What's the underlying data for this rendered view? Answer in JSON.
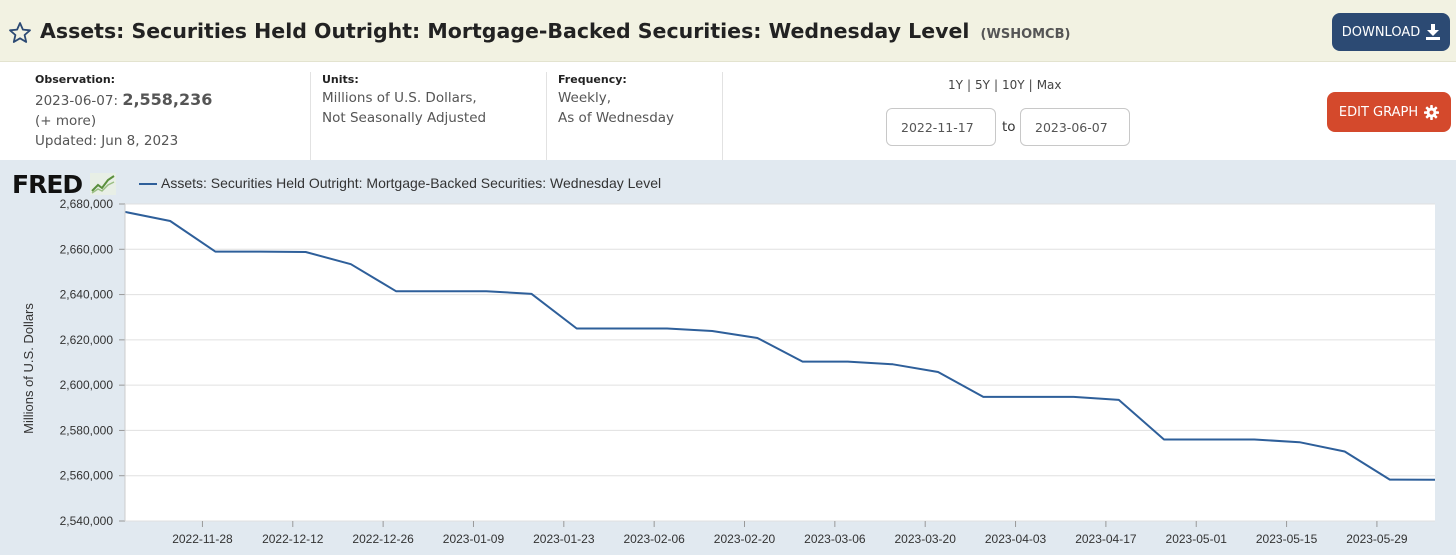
{
  "header": {
    "title": "Assets: Securities Held Outright: Mortgage-Backed Securities: Wednesday Level",
    "series_id": "(WSHOMCB)",
    "download_label": "DOWNLOAD",
    "bg_color": "#f2f2e2"
  },
  "meta": {
    "observation_label": "Observation:",
    "observation_date": "2023-06-07:",
    "observation_value": "2,558,236",
    "more_link": "(+ more)",
    "updated": "Updated: Jun 8, 2023",
    "units_label": "Units:",
    "units_line1": "Millions of U.S. Dollars,",
    "units_line2": "Not Seasonally Adjusted",
    "frequency_label": "Frequency:",
    "frequency_line1": "Weekly,",
    "frequency_line2": "As of Wednesday"
  },
  "range": {
    "options": [
      "1Y",
      "5Y",
      "10Y",
      "Max"
    ],
    "separator": "|",
    "start_date": "2022-11-17",
    "to_label": "to",
    "end_date": "2023-06-07",
    "edit_label": "EDIT GRAPH"
  },
  "icons": {
    "star": "star-icon",
    "download": "download-icon",
    "gear": "gear-icon",
    "fred_logo": "fred-logo"
  },
  "colors": {
    "download_button": "#2c4a73",
    "edit_button": "#d4492c",
    "series_line": "#2e5f9a",
    "panel_bg": "#e1e9f0"
  },
  "fred_logo_text": "FRED",
  "chart_data": {
    "type": "line",
    "title": "",
    "ylabel": "Millions of U.S. Dollars",
    "xlabel": "",
    "ylim": [
      2540000,
      2680000
    ],
    "y_ticks": [
      "2,540,000",
      "2,560,000",
      "2,580,000",
      "2,600,000",
      "2,620,000",
      "2,640,000",
      "2,660,000",
      "2,680,000"
    ],
    "x_ticks": [
      "2022-11-28",
      "2022-12-12",
      "2022-12-26",
      "2023-01-09",
      "2023-01-23",
      "2023-02-06",
      "2023-02-20",
      "2023-03-06",
      "2023-03-20",
      "2023-04-03",
      "2023-04-17",
      "2023-05-01",
      "2023-05-15",
      "2023-05-29"
    ],
    "xlim": [
      "2022-11-17",
      "2023-06-07"
    ],
    "grid": true,
    "legend": "top-left",
    "series": [
      {
        "name": "Assets: Securities Held Outright: Mortgage-Backed Securities: Wednesday Level",
        "x": [
          "2022-11-16",
          "2022-11-23",
          "2022-11-30",
          "2022-12-07",
          "2022-12-14",
          "2022-12-21",
          "2022-12-28",
          "2023-01-04",
          "2023-01-11",
          "2023-01-18",
          "2023-01-25",
          "2023-02-01",
          "2023-02-08",
          "2023-02-15",
          "2023-02-22",
          "2023-03-01",
          "2023-03-08",
          "2023-03-15",
          "2023-03-22",
          "2023-03-29",
          "2023-04-05",
          "2023-04-12",
          "2023-04-19",
          "2023-04-26",
          "2023-05-03",
          "2023-05-10",
          "2023-05-17",
          "2023-05-24",
          "2023-05-31",
          "2023-06-07"
        ],
        "y": [
          2676500,
          2672500,
          2659000,
          2659000,
          2658800,
          2653400,
          2641500,
          2641500,
          2641500,
          2640300,
          2625000,
          2625000,
          2625000,
          2623900,
          2620800,
          2610400,
          2610400,
          2609200,
          2605800,
          2594800,
          2594800,
          2594800,
          2593500,
          2576000,
          2576000,
          2576000,
          2574800,
          2570700,
          2558300,
          2558236
        ]
      }
    ]
  }
}
